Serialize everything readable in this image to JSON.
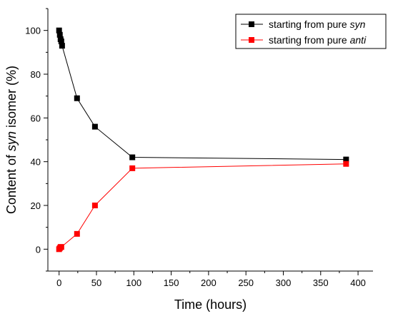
{
  "chart_data": {
    "type": "line",
    "xlabel": "Time (hours)",
    "ylabel_parts": [
      "Content of ",
      "syn",
      " isomer (%)"
    ],
    "xlim": [
      -15,
      420
    ],
    "ylim": [
      -10,
      110
    ],
    "xticks": [
      0,
      50,
      100,
      150,
      200,
      250,
      300,
      350,
      400
    ],
    "yticks": [
      0,
      20,
      40,
      60,
      80,
      100
    ],
    "grid": false,
    "legend_position": "top-right",
    "series": [
      {
        "name_parts": [
          "starting from pure ",
          "syn"
        ],
        "color": "#000000",
        "marker": "square",
        "points": [
          [
            0,
            100
          ],
          [
            1,
            98
          ],
          [
            2,
            96
          ],
          [
            3,
            95
          ],
          [
            4,
            93
          ],
          [
            24,
            69
          ],
          [
            48,
            56
          ],
          [
            98,
            42
          ],
          [
            384,
            41
          ]
        ]
      },
      {
        "name_parts": [
          "starting from pure ",
          "anti"
        ],
        "color": "#ff0000",
        "marker": "square",
        "points": [
          [
            0,
            0
          ],
          [
            1,
            0.5
          ],
          [
            2,
            1
          ],
          [
            3,
            1
          ],
          [
            24,
            7
          ],
          [
            48,
            20
          ],
          [
            98,
            37
          ],
          [
            384,
            39
          ]
        ]
      }
    ]
  }
}
